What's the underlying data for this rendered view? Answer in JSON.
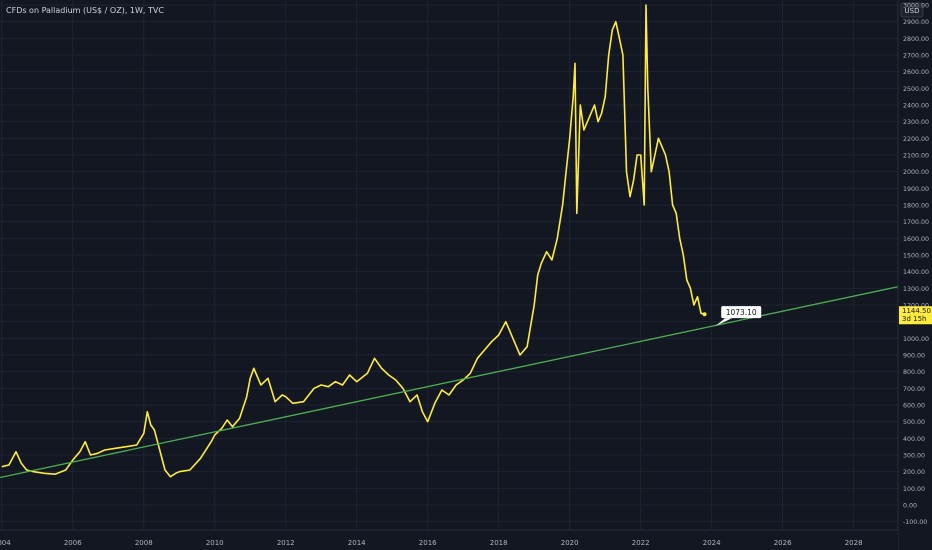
{
  "header": {
    "title": "CFDs on Palladium (US$ / OZ), 1W, TVC",
    "currency": "USD"
  },
  "colors": {
    "background": "#131722",
    "grid": "#1f2433",
    "price_line": "#ffeb3b",
    "trend_line": "#4caf50",
    "axis_text": "#b2b5be",
    "current_price_bg": "#ffeb3b"
  },
  "current_price": {
    "value": "1144.50",
    "countdown": "3d 15h"
  },
  "annotation": {
    "text": "1073.10",
    "x": 2024.1,
    "y": 1073.1
  },
  "chart_data": {
    "type": "line",
    "title": "CFDs on Palladium (US$ / OZ), 1W, TVC",
    "xlabel": "",
    "ylabel": "",
    "xlim": [
      2003.95,
      2029.25
    ],
    "ylim": [
      -150,
      3030
    ],
    "grid": true,
    "x_ticks": [
      "2004",
      "2006",
      "2008",
      "2010",
      "2012",
      "2014",
      "2016",
      "2018",
      "2020",
      "2022",
      "2024",
      "2026",
      "2028"
    ],
    "y_ticks": [
      "-100.00",
      "0.00",
      "100.00",
      "200.00",
      "300.00",
      "400.00",
      "500.00",
      "600.00",
      "700.00",
      "800.00",
      "900.00",
      "1000.00",
      "1100.00",
      "1200.00",
      "1300.00",
      "1400.00",
      "1500.00",
      "1600.00",
      "1700.00",
      "1800.00",
      "1900.00",
      "2000.00",
      "2100.00",
      "2200.00",
      "2300.00",
      "2400.00",
      "2500.00",
      "2600.00",
      "2700.00",
      "2800.00",
      "2900.00",
      "3000.00"
    ],
    "series": [
      {
        "type": "line",
        "color": "#ffeb3b",
        "x": [
          2004.0,
          2004.2,
          2004.4,
          2004.55,
          2004.7,
          2004.9,
          2005.2,
          2005.5,
          2005.8,
          2006.0,
          2006.2,
          2006.35,
          2006.5,
          2006.7,
          2006.9,
          2007.2,
          2007.5,
          2007.8,
          2008.0,
          2008.1,
          2008.2,
          2008.3,
          2008.45,
          2008.6,
          2008.75,
          2008.9,
          2009.0,
          2009.3,
          2009.6,
          2009.9,
          2010.0,
          2010.2,
          2010.35,
          2010.5,
          2010.7,
          2010.9,
          2011.0,
          2011.1,
          2011.3,
          2011.5,
          2011.7,
          2011.9,
          2012.0,
          2012.2,
          2012.5,
          2012.8,
          2013.0,
          2013.2,
          2013.4,
          2013.6,
          2013.8,
          2014.0,
          2014.3,
          2014.5,
          2014.7,
          2014.9,
          2015.1,
          2015.3,
          2015.5,
          2015.7,
          2015.85,
          2016.0,
          2016.2,
          2016.4,
          2016.6,
          2016.8,
          2017.0,
          2017.2,
          2017.4,
          2017.6,
          2017.8,
          2018.0,
          2018.2,
          2018.4,
          2018.6,
          2018.8,
          2019.0,
          2019.1,
          2019.2,
          2019.35,
          2019.5,
          2019.65,
          2019.8,
          2019.9,
          2020.0,
          2020.1,
          2020.15,
          2020.2,
          2020.3,
          2020.4,
          2020.5,
          2020.6,
          2020.7,
          2020.8,
          2020.9,
          2021.0,
          2021.1,
          2021.2,
          2021.3,
          2021.4,
          2021.5,
          2021.6,
          2021.7,
          2021.8,
          2021.9,
          2022.0,
          2022.1,
          2022.15,
          2022.2,
          2022.3,
          2022.4,
          2022.5,
          2022.6,
          2022.7,
          2022.8,
          2022.9,
          2023.0,
          2023.1,
          2023.2,
          2023.3,
          2023.4,
          2023.5,
          2023.6,
          2023.7,
          2023.8
        ],
        "y": [
          230,
          240,
          320,
          250,
          210,
          200,
          190,
          185,
          210,
          270,
          320,
          380,
          300,
          310,
          330,
          340,
          350,
          360,
          430,
          560,
          480,
          450,
          330,
          210,
          170,
          190,
          200,
          210,
          280,
          380,
          420,
          460,
          510,
          470,
          520,
          650,
          760,
          820,
          720,
          760,
          620,
          660,
          650,
          610,
          620,
          700,
          720,
          710,
          740,
          720,
          780,
          740,
          790,
          880,
          820,
          780,
          750,
          700,
          620,
          660,
          560,
          500,
          610,
          690,
          660,
          720,
          750,
          790,
          880,
          930,
          980,
          1020,
          1100,
          1000,
          900,
          950,
          1200,
          1380,
          1450,
          1520,
          1470,
          1600,
          1800,
          2000,
          2200,
          2450,
          2650,
          1750,
          2400,
          2250,
          2300,
          2350,
          2400,
          2300,
          2350,
          2450,
          2700,
          2850,
          2900,
          2800,
          2700,
          2000,
          1850,
          1950,
          2100,
          2100,
          1800,
          3000,
          2500,
          2000,
          2100,
          2200,
          2150,
          2100,
          2000,
          1800,
          1750,
          1600,
          1500,
          1350,
          1300,
          1200,
          1250,
          1150,
          1144.5
        ]
      },
      {
        "type": "line",
        "color": "#4caf50",
        "x": [
          2003.95,
          2029.25
        ],
        "y": [
          165,
          1310
        ]
      }
    ]
  }
}
